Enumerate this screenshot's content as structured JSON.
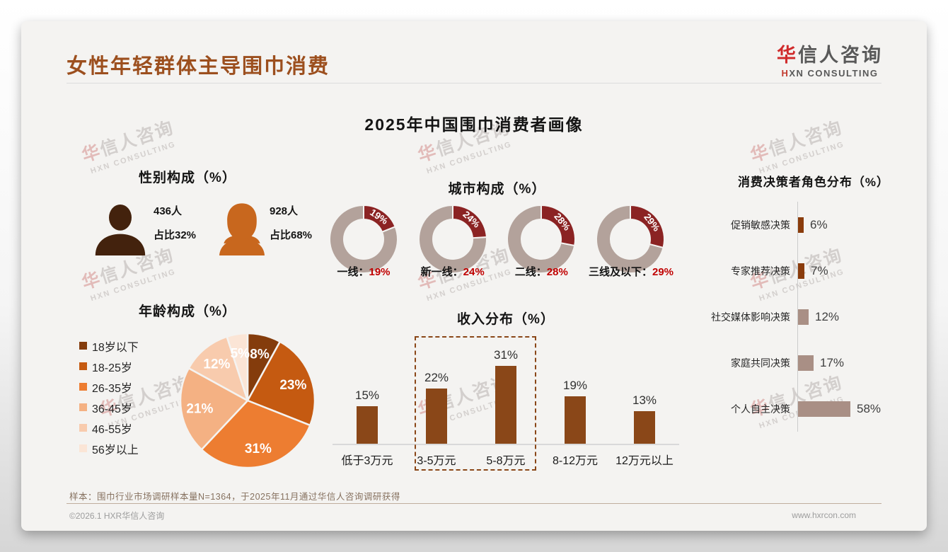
{
  "header": {
    "title": "女性年轻群体主导围巾消费",
    "logo_cn_first": "华",
    "logo_cn_rest": "信人咨询",
    "logo_en_first": "H",
    "logo_en_rest": "XN CONSULTING"
  },
  "main_title": "2025年中国围巾消费者画像",
  "watermark": {
    "line1_first": "华",
    "line1_rest": "信人咨询",
    "line2": "HXN CONSULTING"
  },
  "gender": {
    "heading": "性别构成（%）",
    "male_count": "436人",
    "male_share": "占比32%",
    "female_count": "928人",
    "female_share": "占比68%",
    "male_color": "#43220D",
    "female_color": "#C8671E"
  },
  "footnote": "样本：围巾行业市场调研样本量N=1364，于2025年11月通过华信人咨询调研获得",
  "footer": {
    "copyright": "©2026.1 HXR华信人咨询",
    "website": "www.hxrcon.com"
  },
  "chart_data": [
    {
      "id": "city",
      "type": "donut",
      "title": "城市构成（%）",
      "categories": [
        "一线",
        "新一线",
        "二线",
        "三线及以下"
      ],
      "values": [
        19,
        24,
        28,
        29
      ],
      "slice_color": "#8B2323",
      "rest_color": "#B3A29B",
      "value_label_color": "#FFFFFF",
      "pct_text_color": "#C00000",
      "label_separator": "："
    },
    {
      "id": "age",
      "type": "pie",
      "title": "年龄构成（%）",
      "categories": [
        "18岁以下",
        "18-25岁",
        "26-35岁",
        "36-45岁",
        "46-55岁",
        "56岁以上"
      ],
      "values": [
        8,
        23,
        31,
        21,
        12,
        5
      ],
      "colors": [
        "#843C0C",
        "#C55A11",
        "#ED7D31",
        "#F4B183",
        "#F8CBAD",
        "#FBE5D6"
      ],
      "label_color": "#FFFFFF",
      "legend_position": "left",
      "start_angle": "top",
      "clockwise": true
    },
    {
      "id": "income",
      "type": "bar",
      "title": "收入分布（%）",
      "categories": [
        "低于3万元",
        "3-5万元",
        "5-8万元",
        "8-12万元",
        "12万元以上"
      ],
      "values": [
        15,
        22,
        31,
        19,
        13
      ],
      "bar_color": "#8A4718",
      "ylim": [
        0,
        35
      ],
      "highlighted_categories": [
        "3-5万元",
        "5-8万元"
      ],
      "highlight_style": "dashed-box"
    },
    {
      "id": "decision",
      "type": "hbar",
      "title": "消费决策者角色分布（%）",
      "categories": [
        "促销敏感决策",
        "专家推荐决策",
        "社交媒体影响决策",
        "家庭共同决策",
        "个人自主决策"
      ],
      "values": [
        6,
        7,
        12,
        17,
        58
      ],
      "bar_colors": [
        "#8A3C0C",
        "#8A3C0C",
        "#A98F85",
        "#A98F85",
        "#A98F85"
      ],
      "xlim": [
        0,
        65
      ]
    }
  ]
}
